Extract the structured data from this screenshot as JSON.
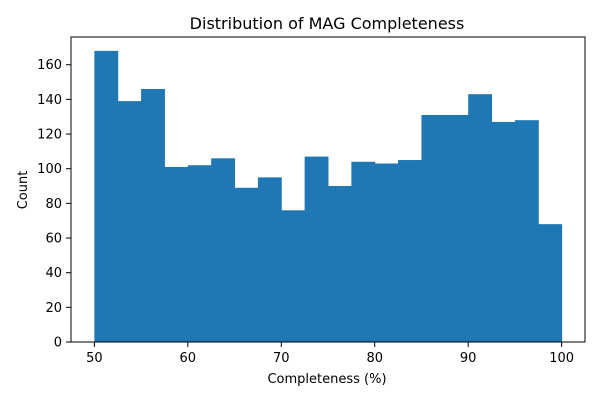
{
  "chart_data": {
    "type": "bar",
    "title": "Distribution of MAG Completeness",
    "xlabel": "Completeness (%)",
    "ylabel": "Count",
    "xlim": [
      47.5,
      102.5
    ],
    "ylim": [
      0,
      176
    ],
    "x_ticks": [
      50,
      60,
      70,
      80,
      90,
      100
    ],
    "y_ticks": [
      0,
      20,
      40,
      60,
      80,
      100,
      120,
      140,
      160
    ],
    "bin_start": 50,
    "bin_width": 2.5,
    "values": [
      168,
      139,
      146,
      101,
      102,
      106,
      89,
      95,
      76,
      107,
      90,
      104,
      103,
      105,
      131,
      131,
      143,
      127,
      128,
      68
    ],
    "bar_color": "#1f77b4",
    "grid": false,
    "legend": "none"
  }
}
